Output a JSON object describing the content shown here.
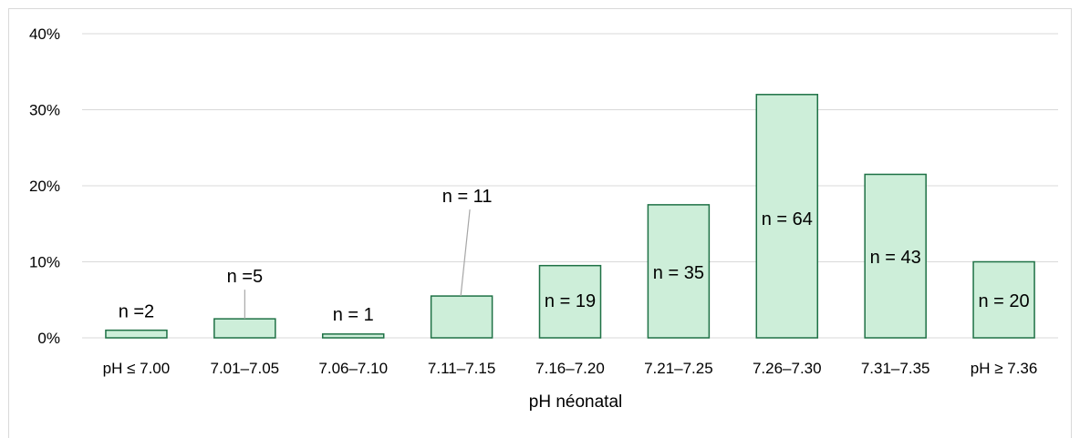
{
  "chart_data": {
    "type": "bar",
    "title": "",
    "xlabel": "pH  néonatal",
    "ylabel": "",
    "categories": [
      "pH ≤ 7.00",
      "7.01–7.05",
      "7.06–7.10",
      "7.11–7.15",
      "7.16–7.20",
      "7.21–7.25",
      "7.26–7.30",
      "7.31–7.35",
      "pH ≥ 7.36"
    ],
    "values": [
      1.0,
      2.5,
      0.5,
      5.5,
      9.5,
      17.5,
      32.0,
      21.5,
      10.0
    ],
    "value_unit": "%",
    "data_labels": [
      "n =2",
      "n =5",
      "n = 1",
      "n = 11",
      "n = 19",
      "n = 35",
      "n = 64",
      "n = 43",
      "n = 20"
    ],
    "ylim": [
      0,
      40
    ],
    "yticks": [
      0,
      10,
      20,
      30,
      40
    ],
    "ytick_labels": [
      "0%",
      "10%",
      "20%",
      "30%",
      "40%"
    ],
    "grid": true,
    "legend": "none",
    "colors": {
      "bar_fill": "#cdeed9",
      "bar_stroke": "#1e7145",
      "grid": "#d9d9d9",
      "leader": "#a6a6a6"
    }
  }
}
